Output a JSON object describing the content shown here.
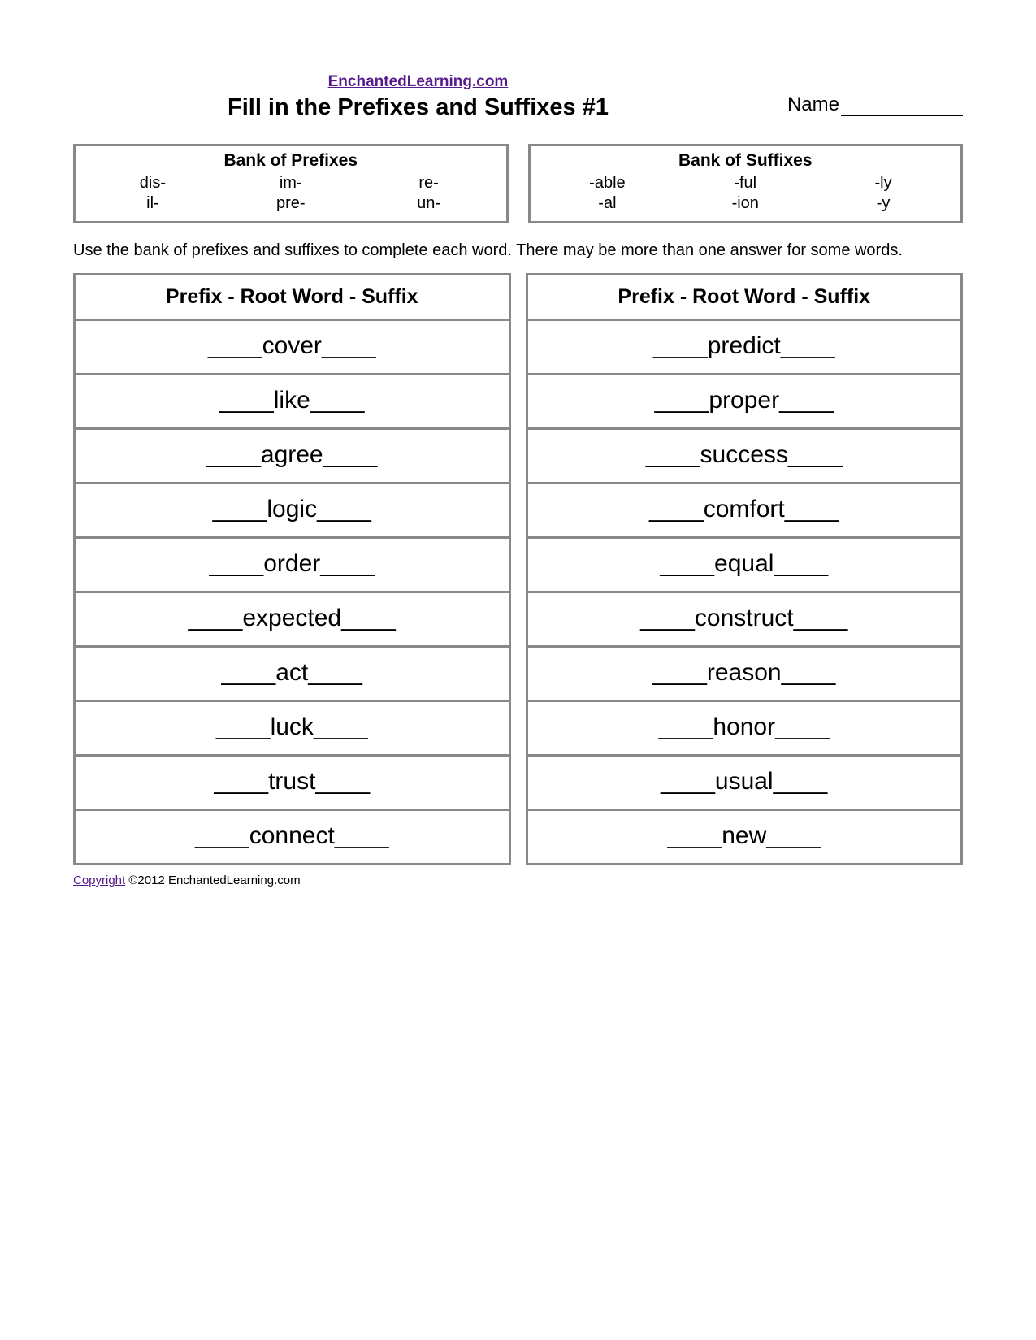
{
  "header": {
    "site_link": "EnchantedLearning.com",
    "title": "Fill in the Prefixes and Suffixes #1",
    "name_label": "Name"
  },
  "banks": {
    "prefixes": {
      "title": "Bank of Prefixes",
      "items": [
        "dis-",
        "im-",
        "re-",
        "il-",
        "pre-",
        "un-"
      ]
    },
    "suffixes": {
      "title": "Bank of Suffixes",
      "items": [
        "-able",
        "-ful",
        "-ly",
        "-al",
        "-ion",
        "-y"
      ]
    }
  },
  "instructions": "Use the bank of prefixes and suffixes to complete each word. There may be more than one answer for some words.",
  "columns": {
    "header": "Prefix - Root Word - Suffix",
    "left_words": [
      "cover",
      "like",
      "agree",
      "logic",
      "order",
      "expected",
      "act",
      "luck",
      "trust",
      "connect"
    ],
    "right_words": [
      "predict",
      "proper",
      "success",
      "comfort",
      "equal",
      "construct",
      "reason",
      "honor",
      "usual",
      "new"
    ]
  },
  "footer": {
    "copyright_link": "Copyright",
    "rest": " ©2012 EnchantedLearning.com"
  },
  "style": {
    "blank": "____",
    "border_color": "#888888",
    "link_color": "#551a8b",
    "background": "#ffffff",
    "font_family": "Verdana",
    "title_fontsize": 29,
    "word_fontsize": 30,
    "bank_fontsize": 20,
    "instruction_fontsize": 20
  }
}
